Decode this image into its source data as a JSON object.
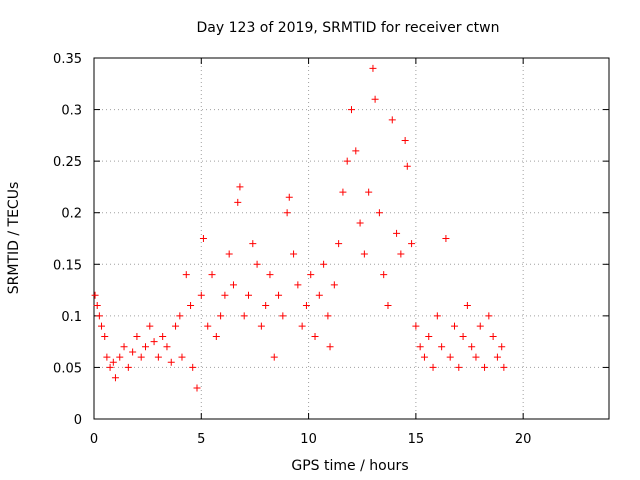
{
  "chart_data": {
    "type": "scatter",
    "title": "Day 123 of 2019, SRMTID for receiver ctwn",
    "xlabel": "GPS time / hours",
    "ylabel": "SRMTID / TECUs",
    "xlim": [
      0,
      24
    ],
    "ylim": [
      0,
      0.35
    ],
    "xticks": [
      0,
      5,
      10,
      15,
      20
    ],
    "xtick_labels": [
      "0",
      "5",
      "10",
      "15",
      "20"
    ],
    "yticks": [
      0,
      0.05,
      0.1,
      0.15,
      0.2,
      0.25,
      0.3,
      0.35
    ],
    "ytick_labels": [
      "0",
      "0.05",
      "0.1",
      "0.15",
      "0.2",
      "0.25",
      "0.3",
      "0.35"
    ],
    "grid": true,
    "marker": "+",
    "color": "#ff0000",
    "series": [
      {
        "name": "SRMTID",
        "points": [
          [
            0.05,
            0.12
          ],
          [
            0.15,
            0.11
          ],
          [
            0.25,
            0.1
          ],
          [
            0.35,
            0.09
          ],
          [
            0.5,
            0.08
          ],
          [
            0.6,
            0.06
          ],
          [
            0.75,
            0.05
          ],
          [
            0.9,
            0.055
          ],
          [
            1.0,
            0.04
          ],
          [
            1.2,
            0.06
          ],
          [
            1.4,
            0.07
          ],
          [
            1.6,
            0.05
          ],
          [
            1.8,
            0.065
          ],
          [
            2.0,
            0.08
          ],
          [
            2.2,
            0.06
          ],
          [
            2.4,
            0.07
          ],
          [
            2.6,
            0.09
          ],
          [
            2.8,
            0.075
          ],
          [
            3.0,
            0.06
          ],
          [
            3.2,
            0.08
          ],
          [
            3.4,
            0.07
          ],
          [
            3.6,
            0.055
          ],
          [
            3.8,
            0.09
          ],
          [
            4.0,
            0.1
          ],
          [
            4.1,
            0.06
          ],
          [
            4.3,
            0.14
          ],
          [
            4.5,
            0.11
          ],
          [
            4.6,
            0.05
          ],
          [
            4.8,
            0.03
          ],
          [
            5.0,
            0.12
          ],
          [
            5.1,
            0.175
          ],
          [
            5.3,
            0.09
          ],
          [
            5.5,
            0.14
          ],
          [
            5.7,
            0.08
          ],
          [
            5.9,
            0.1
          ],
          [
            6.1,
            0.12
          ],
          [
            6.3,
            0.16
          ],
          [
            6.5,
            0.13
          ],
          [
            6.7,
            0.21
          ],
          [
            6.8,
            0.225
          ],
          [
            7.0,
            0.1
          ],
          [
            7.2,
            0.12
          ],
          [
            7.4,
            0.17
          ],
          [
            7.6,
            0.15
          ],
          [
            7.8,
            0.09
          ],
          [
            8.0,
            0.11
          ],
          [
            8.2,
            0.14
          ],
          [
            8.4,
            0.06
          ],
          [
            8.6,
            0.12
          ],
          [
            8.8,
            0.1
          ],
          [
            9.0,
            0.2
          ],
          [
            9.1,
            0.215
          ],
          [
            9.3,
            0.16
          ],
          [
            9.5,
            0.13
          ],
          [
            9.7,
            0.09
          ],
          [
            9.9,
            0.11
          ],
          [
            10.1,
            0.14
          ],
          [
            10.3,
            0.08
          ],
          [
            10.5,
            0.12
          ],
          [
            10.7,
            0.15
          ],
          [
            10.9,
            0.1
          ],
          [
            11.0,
            0.07
          ],
          [
            11.2,
            0.13
          ],
          [
            11.4,
            0.17
          ],
          [
            11.6,
            0.22
          ],
          [
            11.8,
            0.25
          ],
          [
            12.0,
            0.3
          ],
          [
            12.2,
            0.26
          ],
          [
            12.4,
            0.19
          ],
          [
            12.6,
            0.16
          ],
          [
            12.8,
            0.22
          ],
          [
            13.0,
            0.34
          ],
          [
            13.1,
            0.31
          ],
          [
            13.3,
            0.2
          ],
          [
            13.5,
            0.14
          ],
          [
            13.7,
            0.11
          ],
          [
            13.9,
            0.29
          ],
          [
            14.1,
            0.18
          ],
          [
            14.3,
            0.16
          ],
          [
            14.5,
            0.27
          ],
          [
            14.6,
            0.245
          ],
          [
            14.8,
            0.17
          ],
          [
            15.0,
            0.09
          ],
          [
            15.2,
            0.07
          ],
          [
            15.4,
            0.06
          ],
          [
            15.6,
            0.08
          ],
          [
            15.8,
            0.05
          ],
          [
            16.0,
            0.1
          ],
          [
            16.2,
            0.07
          ],
          [
            16.4,
            0.175
          ],
          [
            16.6,
            0.06
          ],
          [
            16.8,
            0.09
          ],
          [
            17.0,
            0.05
          ],
          [
            17.2,
            0.08
          ],
          [
            17.4,
            0.11
          ],
          [
            17.6,
            0.07
          ],
          [
            17.8,
            0.06
          ],
          [
            18.0,
            0.09
          ],
          [
            18.2,
            0.05
          ],
          [
            18.4,
            0.1
          ],
          [
            18.6,
            0.08
          ],
          [
            18.8,
            0.06
          ],
          [
            19.0,
            0.07
          ],
          [
            19.1,
            0.05
          ]
        ]
      }
    ],
    "points": [
      [
        0.05,
        0.12
      ],
      [
        0.15,
        0.11
      ],
      [
        0.25,
        0.1
      ],
      [
        0.35,
        0.09
      ],
      [
        0.5,
        0.08
      ],
      [
        0.6,
        0.06
      ],
      [
        0.75,
        0.05
      ],
      [
        0.9,
        0.055
      ],
      [
        1.0,
        0.04
      ],
      [
        1.2,
        0.06
      ],
      [
        1.4,
        0.07
      ],
      [
        1.6,
        0.05
      ],
      [
        1.8,
        0.065
      ],
      [
        2.0,
        0.08
      ],
      [
        2.2,
        0.06
      ],
      [
        2.4,
        0.07
      ],
      [
        2.6,
        0.09
      ],
      [
        2.8,
        0.075
      ],
      [
        3.0,
        0.06
      ],
      [
        3.2,
        0.08
      ],
      [
        3.4,
        0.07
      ],
      [
        3.6,
        0.055
      ],
      [
        3.8,
        0.09
      ],
      [
        4.0,
        0.1
      ],
      [
        4.1,
        0.06
      ],
      [
        4.3,
        0.14
      ],
      [
        4.5,
        0.11
      ],
      [
        4.6,
        0.05
      ],
      [
        4.8,
        0.03
      ],
      [
        5.0,
        0.12
      ],
      [
        5.1,
        0.175
      ],
      [
        5.3,
        0.09
      ],
      [
        5.5,
        0.14
      ],
      [
        5.7,
        0.08
      ],
      [
        5.9,
        0.1
      ],
      [
        6.1,
        0.12
      ],
      [
        6.3,
        0.16
      ],
      [
        6.5,
        0.13
      ],
      [
        6.7,
        0.21
      ],
      [
        6.8,
        0.225
      ],
      [
        7.0,
        0.1
      ],
      [
        7.2,
        0.12
      ],
      [
        7.4,
        0.17
      ],
      [
        7.6,
        0.15
      ],
      [
        7.8,
        0.09
      ],
      [
        8.0,
        0.11
      ],
      [
        8.2,
        0.14
      ],
      [
        8.4,
        0.06
      ],
      [
        8.6,
        0.12
      ],
      [
        8.8,
        0.1
      ],
      [
        9.0,
        0.2
      ],
      [
        9.1,
        0.215
      ],
      [
        9.3,
        0.16
      ],
      [
        9.5,
        0.13
      ],
      [
        9.7,
        0.09
      ],
      [
        9.9,
        0.11
      ],
      [
        10.1,
        0.14
      ],
      [
        10.3,
        0.08
      ],
      [
        10.5,
        0.12
      ],
      [
        10.7,
        0.15
      ],
      [
        10.9,
        0.1
      ],
      [
        11.0,
        0.07
      ],
      [
        11.2,
        0.13
      ],
      [
        11.4,
        0.17
      ],
      [
        11.6,
        0.22
      ],
      [
        11.8,
        0.25
      ],
      [
        12.0,
        0.3
      ],
      [
        12.2,
        0.26
      ],
      [
        12.4,
        0.19
      ],
      [
        12.6,
        0.16
      ],
      [
        12.8,
        0.22
      ],
      [
        13.0,
        0.34
      ],
      [
        13.1,
        0.31
      ],
      [
        13.3,
        0.2
      ],
      [
        13.5,
        0.14
      ],
      [
        13.7,
        0.11
      ],
      [
        13.9,
        0.29
      ],
      [
        14.1,
        0.18
      ],
      [
        14.3,
        0.16
      ],
      [
        14.5,
        0.27
      ],
      [
        14.6,
        0.245
      ],
      [
        14.8,
        0.17
      ],
      [
        15.0,
        0.09
      ],
      [
        15.2,
        0.07
      ],
      [
        15.4,
        0.06
      ],
      [
        15.6,
        0.08
      ],
      [
        15.8,
        0.05
      ],
      [
        16.0,
        0.1
      ],
      [
        16.2,
        0.07
      ],
      [
        16.4,
        0.175
      ],
      [
        16.6,
        0.06
      ],
      [
        16.8,
        0.09
      ],
      [
        17.0,
        0.05
      ],
      [
        17.2,
        0.08
      ],
      [
        17.4,
        0.11
      ],
      [
        17.6,
        0.07
      ],
      [
        17.8,
        0.06
      ],
      [
        18.0,
        0.09
      ],
      [
        18.2,
        0.05
      ],
      [
        18.4,
        0.1
      ],
      [
        18.6,
        0.08
      ],
      [
        18.8,
        0.06
      ],
      [
        19.0,
        0.07
      ],
      [
        19.1,
        0.05
      ]
    ]
  }
}
